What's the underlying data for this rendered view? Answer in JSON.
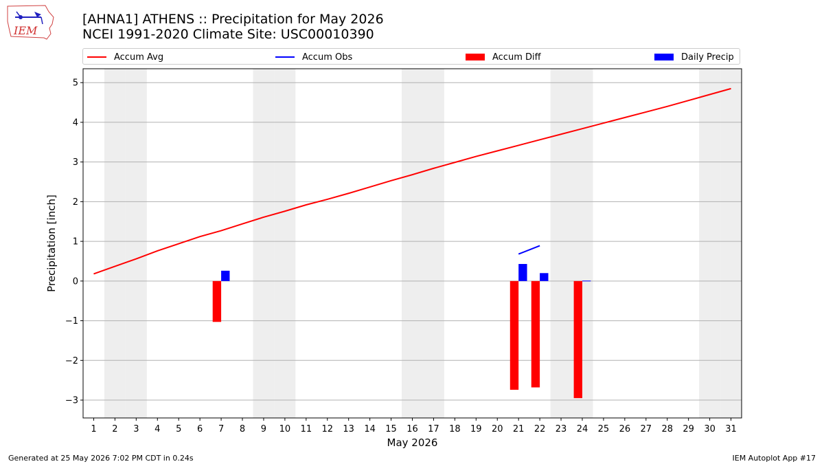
{
  "title": "[AHNA1] ATHENS :: Precipitation for May 2026",
  "subtitle": "NCEI 1991-2020 Climate Site: USC00010390",
  "logo_text": "IEM",
  "footer_left": "Generated at 25 May 2026 7:02 PM CDT in 0.24s",
  "footer_right": "IEM Autoplot App #17",
  "colors": {
    "accum_avg": "#ff0000",
    "accum_obs": "#0000ff",
    "accum_diff": "#ff0000",
    "daily_precip": "#0000ff",
    "weekend_shade": "#eeeeee",
    "grid": "#b0b0b0"
  },
  "chart_data": {
    "type": "bar",
    "xlabel": "May 2026",
    "ylabel": "Precipitation [inch]",
    "xlim": [
      0.5,
      31.5
    ],
    "ylim": [
      -3.45,
      5.35
    ],
    "x": [
      1,
      2,
      3,
      4,
      5,
      6,
      7,
      8,
      9,
      10,
      11,
      12,
      13,
      14,
      15,
      16,
      17,
      18,
      19,
      20,
      21,
      22,
      23,
      24,
      25,
      26,
      27,
      28,
      29,
      30,
      31
    ],
    "x_tick_labels": [
      "1",
      "2",
      "3",
      "4",
      "5",
      "6",
      "7",
      "8",
      "9",
      "10",
      "11",
      "12",
      "13",
      "14",
      "15",
      "16",
      "17",
      "18",
      "19",
      "20",
      "21",
      "22",
      "23",
      "24",
      "25",
      "26",
      "27",
      "28",
      "29",
      "30",
      "31"
    ],
    "y_ticks": [
      -3,
      -2,
      -1,
      0,
      1,
      2,
      3,
      4,
      5
    ],
    "y_tick_labels": [
      "−3",
      "−2",
      "−1",
      "0",
      "1",
      "2",
      "3",
      "4",
      "5"
    ],
    "grid": "horizontal",
    "legend_position": "top",
    "weekend_days": [
      2,
      3,
      9,
      10,
      16,
      17,
      23,
      24,
      30,
      31
    ],
    "series": [
      {
        "name": "Accum Avg",
        "kind": "line",
        "x": [
          1,
          2,
          3,
          4,
          5,
          6,
          7,
          8,
          9,
          10,
          11,
          12,
          13,
          14,
          15,
          16,
          17,
          18,
          19,
          20,
          21,
          22,
          23,
          24,
          25,
          26,
          27,
          28,
          29,
          30,
          31
        ],
        "values": [
          0.18,
          0.37,
          0.56,
          0.76,
          0.94,
          1.12,
          1.27,
          1.44,
          1.61,
          1.76,
          1.92,
          2.06,
          2.21,
          2.37,
          2.53,
          2.68,
          2.84,
          2.99,
          3.14,
          3.28,
          3.42,
          3.56,
          3.7,
          3.84,
          3.98,
          4.12,
          4.26,
          4.4,
          4.55,
          4.7,
          4.85
        ]
      },
      {
        "name": "Accum Obs",
        "kind": "line",
        "x": [
          21,
          22
        ],
        "values": [
          0.68,
          0.89
        ]
      },
      {
        "name": "Accum Diff",
        "kind": "bar",
        "x": [
          7,
          21,
          22,
          24
        ],
        "values": [
          -1.03,
          -2.74,
          -2.68,
          -2.95
        ]
      },
      {
        "name": "Daily Precip",
        "kind": "bar",
        "x": [
          7,
          21,
          22,
          24
        ],
        "values": [
          0.26,
          0.43,
          0.2,
          0.01
        ]
      }
    ]
  }
}
